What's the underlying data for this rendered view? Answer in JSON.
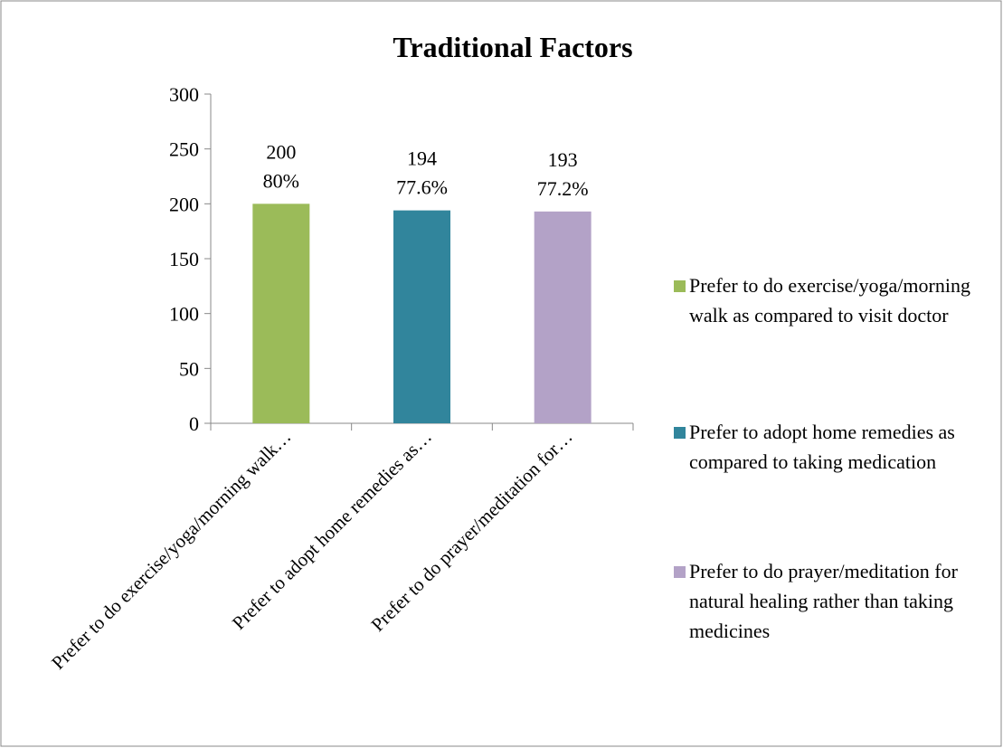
{
  "chart_data": {
    "type": "bar",
    "title": "Traditional Factors",
    "categories": [
      "Prefer to do exercise/yoga/morning walk…",
      "Prefer to adopt home remedies as…",
      "Prefer to do prayer/meditation for…"
    ],
    "values": [
      200,
      194,
      193
    ],
    "percent_labels": [
      "80%",
      "77.6%",
      "77.2%"
    ],
    "colors": [
      "#9bbb59",
      "#31859c",
      "#b3a2c7"
    ],
    "legend": [
      "Prefer to do exercise/yoga/morning walk as compared to visit doctor",
      "Prefer to adopt home remedies as compared to taking medication",
      "Prefer to do prayer/meditation for natural healing rather than taking medicines"
    ],
    "ylim": [
      0,
      300
    ],
    "yticks": [
      0,
      50,
      100,
      150,
      200,
      250,
      300
    ]
  }
}
